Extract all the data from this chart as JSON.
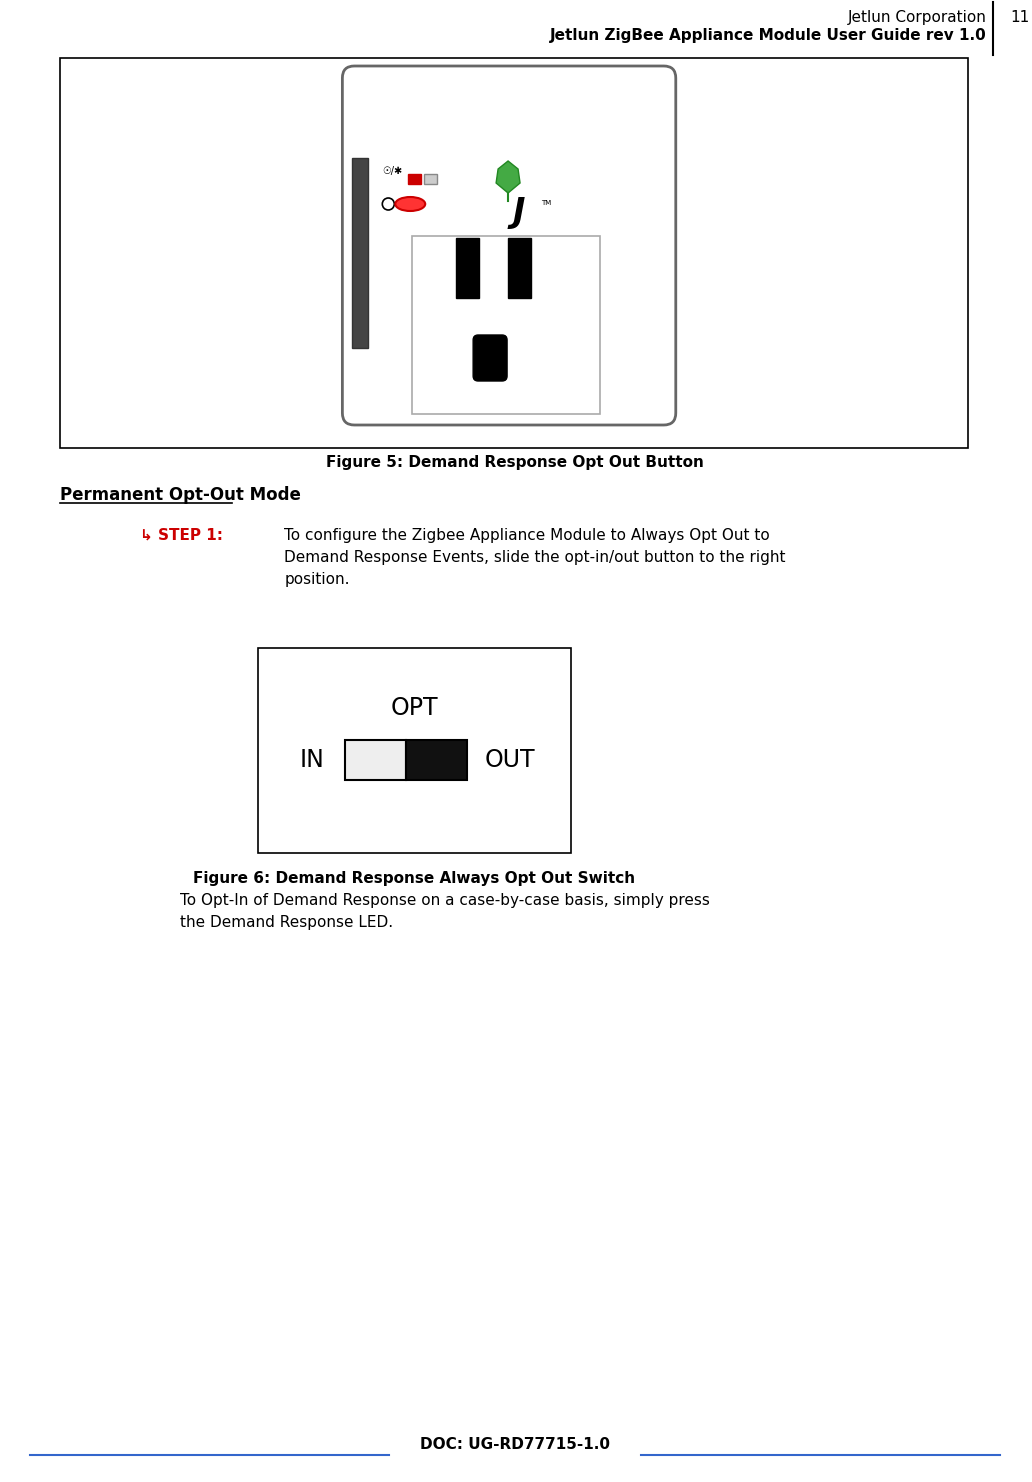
{
  "header_line1": "Jetlun Corporation",
  "header_line2": "Jetlun ZigBee Appliance Module User Guide rev 1.0",
  "page_number": "11",
  "figure5_caption": "Figure 5: Demand Response Opt Out Button",
  "section_title": "Permanent Opt-Out Mode",
  "step_label": "↳ STEP 1:",
  "step_text": "To configure the Zigbee Appliance Module to Always Opt Out to\nDemand Response Events, slide the opt-in/out button to the right\nposition.",
  "figure6_caption": "Figure 6: Demand Response Always Opt Out Switch",
  "footer_text": "DOC: UG-RD77715-1.0",
  "bottom_text": "To Opt-In of Demand Response on a case-by-case basis, simply press\nthe Demand Response LED.",
  "header_color": "#000000",
  "accent_color": "#3366cc",
  "step_color": "#cc0000",
  "fig_width": 10.32,
  "fig_height": 14.82
}
